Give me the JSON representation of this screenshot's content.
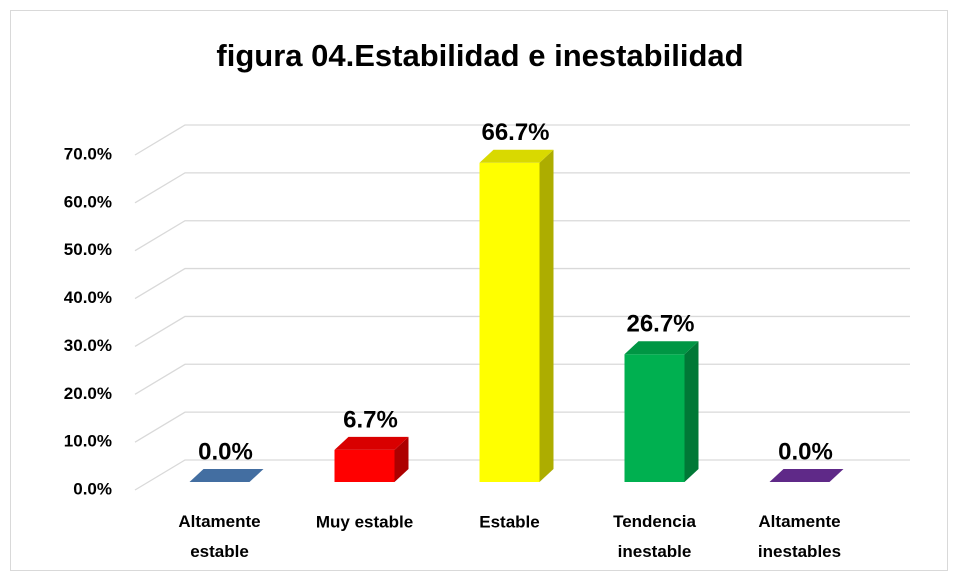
{
  "chart_data": {
    "type": "bar3d",
    "title": "figura 04.Estabilidad e inestabilidad",
    "categories": [
      "Altamente estable",
      "Muy estable",
      "Estable",
      "Tendencia inestable",
      "Altamente inestables"
    ],
    "values": [
      0,
      6.7,
      66.7,
      26.7,
      0
    ],
    "value_labels": [
      "0.0%",
      "6.7%",
      "66.7%",
      "26.7%",
      "0.0%"
    ],
    "colors": [
      "#4f81bd",
      "#ff0000",
      "#ffff00",
      "#00b050",
      "#7030a0"
    ],
    "ylim": [
      0,
      70
    ],
    "yticks": [
      {
        "value": 0,
        "label": "0.0%"
      },
      {
        "value": 10,
        "label": "10.0%"
      },
      {
        "value": 20,
        "label": "20.0%"
      },
      {
        "value": 30,
        "label": "30.0%"
      },
      {
        "value": 40,
        "label": "40.0%"
      },
      {
        "value": 50,
        "label": "50.0%"
      },
      {
        "value": 60,
        "label": "60.0%"
      },
      {
        "value": 70,
        "label": "70.0%"
      }
    ],
    "grid": true
  }
}
